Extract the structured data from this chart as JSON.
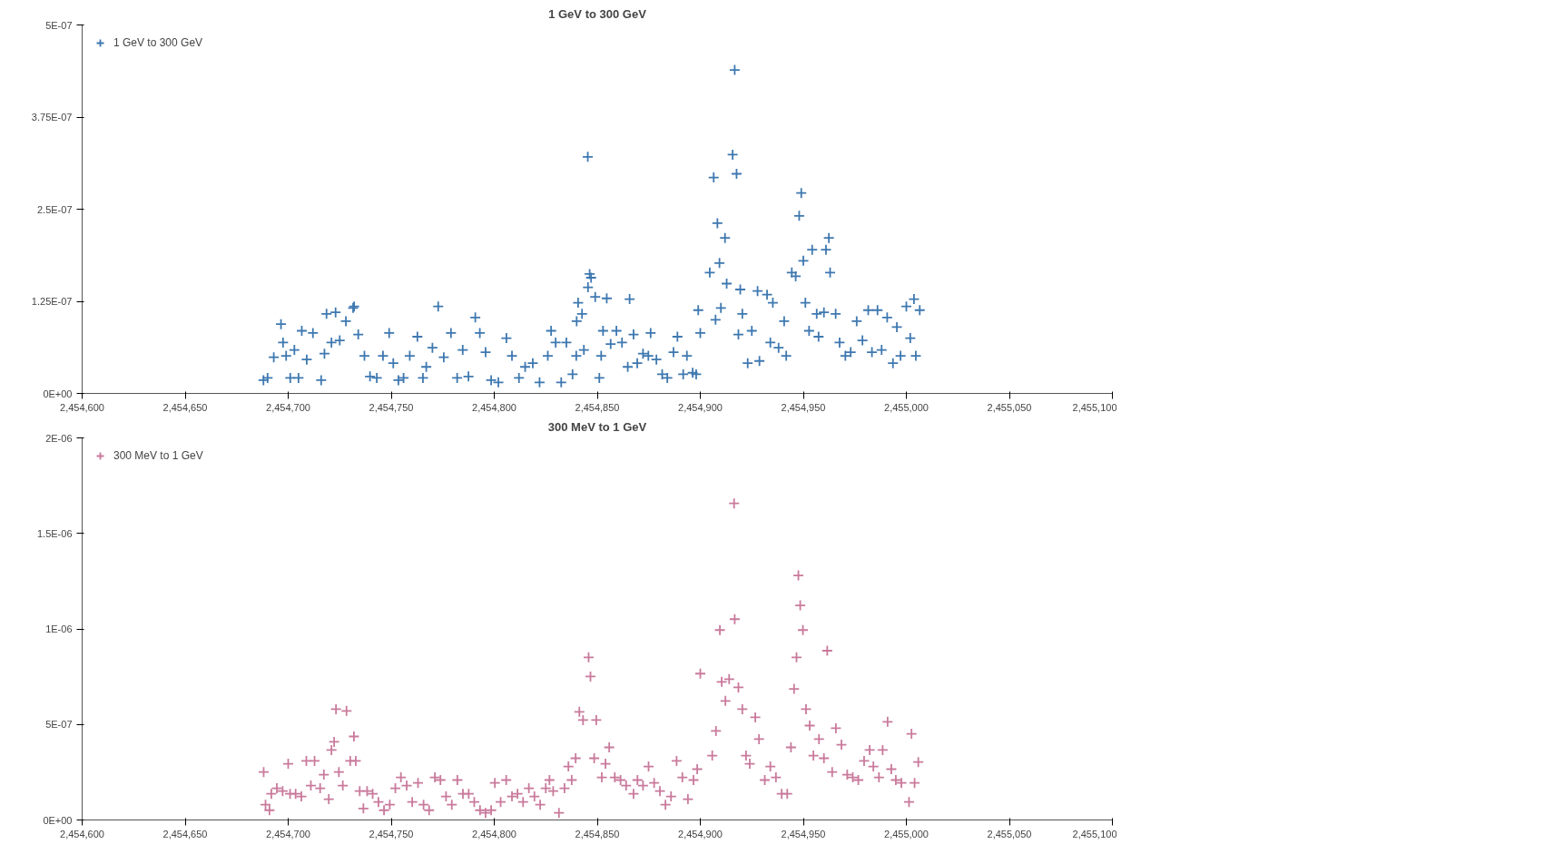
{
  "chart_data": [
    {
      "type": "scatter",
      "title": "1 GeV to 300 GeV",
      "marker": "cross",
      "legend": "top left",
      "grid": false,
      "xlim": [
        2454600,
        2455100
      ],
      "xticks": [
        {
          "value": 2454600,
          "label": "2,454,600"
        },
        {
          "value": 2454650,
          "label": "2,454,650"
        },
        {
          "value": 2454700,
          "label": "2,454,700"
        },
        {
          "value": 2454750,
          "label": "2,454,750"
        },
        {
          "value": 2454800,
          "label": "2,454,800"
        },
        {
          "value": 2454850,
          "label": "2,454,850"
        },
        {
          "value": 2454900,
          "label": "2,454,900"
        },
        {
          "value": 2454950,
          "label": "2,454,950"
        },
        {
          "value": 2455000,
          "label": "2,455,000"
        },
        {
          "value": 2455050,
          "label": "2,455,050"
        },
        {
          "value": 2455100,
          "label": "2,455,100"
        }
      ],
      "ylim": [
        0,
        5e-07
      ],
      "yticks": [
        {
          "value": 0,
          "label": "0E+00"
        },
        {
          "value": 1.25e-07,
          "label": "1.25E-07"
        },
        {
          "value": 2.5e-07,
          "label": "2.5E-07"
        },
        {
          "value": 3.75e-07,
          "label": "3.75E-07"
        },
        {
          "value": 5e-07,
          "label": "5E-07"
        }
      ],
      "series": [
        {
          "name": "1 GeV to 300 GeV",
          "color": "#3e78b0",
          "x": [
            2454688,
            2454690,
            2454693,
            2454696.5,
            2454697.5,
            2454699,
            2454701,
            2454703,
            2454705,
            2454706.6,
            2454709,
            2454712,
            2454716,
            2454717.6,
            2454718.6,
            2454721,
            2454723,
            2454725,
            2454728,
            2454731.5,
            2454732,
            2454734,
            2454737,
            2454739.7,
            2454743,
            2454746,
            2454749,
            2454751,
            2454753.5,
            2454756,
            2454759,
            2454762.7,
            2454765.4,
            2454767,
            2454770,
            2454772.8,
            2454775.5,
            2454779,
            2454782,
            2454784.7,
            2454787.5,
            2454790.8,
            2454793,
            2454795.8,
            2454798.5,
            2454802,
            2454805.9,
            2454808.6,
            2454812,
            2454815,
            2454818.7,
            2454822,
            2454826,
            2454827.6,
            2454829.8,
            2454832.5,
            2454835,
            2454838,
            2454840,
            2454845.5,
            2454847,
            2454839.8,
            2454840.7,
            2454846.3,
            2454845.4,
            2454842.6,
            2454849,
            2454854.6,
            2454843.5,
            2454851,
            2454851.9,
            2454852.8,
            2454856.5,
            2454859.3,
            2454862,
            2454865.7,
            2454864.8,
            2454867.6,
            2454869.4,
            2454872.2,
            2454874.8,
            2454875.9,
            2454878.7,
            2454881.5,
            2454884,
            2454887,
            2454888.9,
            2454891.7,
            2454893.5,
            2454896.3,
            2454898,
            2454900,
            2454899,
            2454904.6,
            2454906.5,
            2454907.4,
            2454908.3,
            2454909.3,
            2454910,
            2454912,
            2454912.8,
            2454915.7,
            2454916.7,
            2454917.6,
            2454919.4,
            2454918.5,
            2454920.4,
            2454923,
            2454925,
            2454927.8,
            2454928.7,
            2454932.4,
            2454935.2,
            2454934,
            2454938,
            2454940.7,
            2454941.7,
            2454944.4,
            2454946.3,
            2454948,
            2454949,
            2454950,
            2454951,
            2454952.8,
            2454954.3,
            2454956.5,
            2454957.4,
            2454960,
            2454961,
            2454962.4,
            2454963,
            2454965.7,
            2454967.6,
            2454970.4,
            2454973,
            2454975.9,
            2454978.7,
            2454981.5,
            2454983.3,
            2454986,
            2454988,
            2454990.7,
            2454993.5,
            2454995.4,
            2454997.2,
            2455000,
            2455001.9,
            2455003.7,
            2455004.6,
            2455006.5
          ],
          "values": [
            1.8e-08,
            2.1e-08,
            4.9e-08,
            9.4e-08,
            6.9e-08,
            5.1e-08,
            2.1e-08,
            5.9e-08,
            2.1e-08,
            8.5e-08,
            4.6e-08,
            8.2e-08,
            1.8e-08,
            5.4e-08,
            1.08e-07,
            6.9e-08,
            1.1e-07,
            7.2e-08,
            9.8e-08,
            1.16e-07,
            1.18e-07,
            8e-08,
            5.1e-08,
            2.3e-08,
            2.1e-08,
            5.1e-08,
            8.2e-08,
            4.1e-08,
            1.8e-08,
            2.1e-08,
            5.1e-08,
            7.7e-08,
            2.1e-08,
            3.6e-08,
            6.2e-08,
            1.18e-07,
            4.9e-08,
            8.2e-08,
            2.1e-08,
            5.9e-08,
            2.3e-08,
            1.03e-07,
            8.2e-08,
            5.6e-08,
            1.8e-08,
            1.5e-08,
            7.5e-08,
            5.1e-08,
            2.1e-08,
            3.6e-08,
            4.1e-08,
            1.5e-08,
            5.1e-08,
            8.5e-08,
            6.9e-08,
            1.5e-08,
            6.9e-08,
            2.6e-08,
            9.8e-08,
            1.44e-07,
            1.57e-07,
            5.1e-08,
            1.23e-07,
            1.62e-07,
            3.21e-07,
            1.08e-07,
            1.31e-07,
            1.29e-07,
            5.9e-08,
            2.1e-08,
            5.1e-08,
            8.5e-08,
            6.7e-08,
            8.5e-08,
            6.9e-08,
            1.28e-07,
            3.6e-08,
            8e-08,
            4.1e-08,
            5.4e-08,
            5.1e-08,
            8.2e-08,
            4.6e-08,
            2.6e-08,
            2.1e-08,
            5.6e-08,
            7.7e-08,
            2.6e-08,
            5.1e-08,
            2.8e-08,
            2.6e-08,
            8.2e-08,
            1.13e-07,
            1.64e-07,
            2.93e-07,
            1e-07,
            2.31e-07,
            1.77e-07,
            1.16e-07,
            2.11e-07,
            1.49e-07,
            3.24e-07,
            4.39e-07,
            2.98e-07,
            1.41e-07,
            8e-08,
            1.08e-07,
            4.1e-08,
            8.5e-08,
            1.39e-07,
            4.4e-08,
            1.34e-07,
            1.23e-07,
            6.9e-08,
            6.2e-08,
            9.8e-08,
            5.1e-08,
            1.64e-07,
            1.59e-07,
            2.41e-07,
            2.72e-07,
            1.8e-07,
            1.23e-07,
            8.5e-08,
            1.95e-07,
            1.08e-07,
            7.7e-08,
            1.1e-07,
            1.95e-07,
            2.11e-07,
            1.64e-07,
            1.08e-07,
            6.9e-08,
            5.1e-08,
            5.6e-08,
            9.8e-08,
            7.2e-08,
            1.13e-07,
            5.6e-08,
            1.13e-07,
            5.9e-08,
            1.03e-07,
            4.1e-08,
            9e-08,
            5.1e-08,
            1.18e-07,
            7.5e-08,
            1.28e-07,
            5.1e-08,
            1.13e-07
          ]
        }
      ]
    },
    {
      "type": "scatter",
      "title": "300 MeV to 1 GeV",
      "marker": "cross",
      "legend": "top left",
      "grid": false,
      "xlim": [
        2454600,
        2455100
      ],
      "xticks": [
        {
          "value": 2454600,
          "label": "2,454,600"
        },
        {
          "value": 2454650,
          "label": "2,454,650"
        },
        {
          "value": 2454700,
          "label": "2,454,700"
        },
        {
          "value": 2454750,
          "label": "2,454,750"
        },
        {
          "value": 2454800,
          "label": "2,454,800"
        },
        {
          "value": 2454850,
          "label": "2,454,850"
        },
        {
          "value": 2454900,
          "label": "2,454,900"
        },
        {
          "value": 2454950,
          "label": "2,454,950"
        },
        {
          "value": 2455000,
          "label": "2,455,000"
        },
        {
          "value": 2455050,
          "label": "2,455,050"
        },
        {
          "value": 2455100,
          "label": "2,455,100"
        }
      ],
      "ylim": [
        0,
        2e-06
      ],
      "yticks": [
        {
          "value": 0,
          "label": "0E+00"
        },
        {
          "value": 5e-07,
          "label": "5E-07"
        },
        {
          "value": 1e-06,
          "label": "1E-06"
        },
        {
          "value": 1.5e-06,
          "label": "1.5E-06"
        },
        {
          "value": 2e-06,
          "label": "2E-06"
        }
      ],
      "series": [
        {
          "name": "300 MeV to 1 GeV",
          "color": "#c97a9c",
          "x": [
            2454688.1,
            2454689,
            2454690.9,
            2454691.8,
            2454694.5,
            2454697.3,
            2454700,
            2454700.9,
            2454703.6,
            2454706.4,
            2454708.8,
            2454711,
            2454712.8,
            2454715.5,
            2454717.3,
            2454719.7,
            2454721,
            2454722.3,
            2454723.2,
            2454724.6,
            2454726.5,
            2454728.3,
            2454730.1,
            2454731.9,
            2454732.8,
            2454734.7,
            2454736.5,
            2454738.3,
            2454741,
            2454743.8,
            2454746.5,
            2454749.3,
            2454752,
            2454754.7,
            2454757.5,
            2454760.2,
            2454763,
            2454765.7,
            2454768.4,
            2454771.2,
            2454773.9,
            2454776.6,
            2454779.4,
            2454782.1,
            2454784.8,
            2454787.6,
            2454790.3,
            2454793.1,
            2454795.8,
            2454798.5,
            2454800.3,
            2454803.1,
            2454805.8,
            2454808.6,
            2454811.3,
            2454814,
            2454816.8,
            2454819.5,
            2454822.3,
            2454825,
            2454826.8,
            2454828.6,
            2454831.4,
            2454834.1,
            2454836,
            2454837.6,
            2454839.5,
            2454841.3,
            2454843.1,
            2454845.8,
            2454846.7,
            2454848.5,
            2454849.5,
            2454852.2,
            2454854,
            2454855.8,
            2454858.5,
            2454861.3,
            2454864,
            2454867.6,
            2454869.5,
            2454872.2,
            2454874.9,
            2454877.6,
            2454880.4,
            2454883.1,
            2454885.8,
            2454888.5,
            2454891.3,
            2454894,
            2454896.7,
            2454898.5,
            2454900,
            2454905.8,
            2454907.6,
            2454909.5,
            2454910.4,
            2454912.2,
            2454914,
            2454916.4,
            2454916.7,
            2454918.5,
            2454920.4,
            2454922.2,
            2454924,
            2454926.7,
            2454928.5,
            2454931.3,
            2454934,
            2454936.7,
            2454939.5,
            2454942.2,
            2454944,
            2454945.5,
            2454946.7,
            2454947.6,
            2454948.5,
            2454949.8,
            2454951.3,
            2454953.1,
            2454954.9,
            2454957.6,
            2454960,
            2454961.6,
            2454964,
            2454965.8,
            2454968.5,
            2454971.3,
            2454974,
            2454976.7,
            2454979.5,
            2454982.2,
            2454984,
            2454986.7,
            2454988.5,
            2454990.9,
            2454992.7,
            2454994.9,
            2454997.6,
            2455001.3,
            2455002.5,
            2455004,
            2455005.8
          ],
          "values": [
            2.51e-07,
            8e-08,
            5.1e-08,
            1.37e-07,
            1.66e-07,
            1.51e-07,
            2.94e-07,
            1.37e-07,
            1.37e-07,
            1.23e-07,
            3.09e-07,
            1.8e-07,
            3.09e-07,
            1.66e-07,
            2.37e-07,
            1.09e-07,
            3.66e-07,
            4.09e-07,
            5.8e-07,
            2.51e-07,
            1.8e-07,
            5.71e-07,
            3.09e-07,
            4.37e-07,
            3.09e-07,
            1.51e-07,
            6e-08,
            1.51e-07,
            1.37e-07,
            9.4e-08,
            5.1e-08,
            8e-08,
            1.66e-07,
            2.23e-07,
            1.8e-07,
            9.4e-08,
            1.94e-07,
            8e-08,
            5.1e-08,
            2.23e-07,
            2.09e-07,
            1.23e-07,
            8e-08,
            2.09e-07,
            1.37e-07,
            1.37e-07,
            9.4e-08,
            5.1e-08,
            3.7e-08,
            5.1e-08,
            1.94e-07,
            9.4e-08,
            2.09e-07,
            1.23e-07,
            1.37e-07,
            9.4e-08,
            1.66e-07,
            1.23e-07,
            8e-08,
            1.66e-07,
            2.09e-07,
            1.51e-07,
            3.7e-08,
            1.66e-07,
            2.8e-07,
            2.09e-07,
            3.23e-07,
            5.66e-07,
            5.23e-07,
            8.51e-07,
            7.51e-07,
            3.23e-07,
            5.23e-07,
            2.23e-07,
            2.94e-07,
            3.8e-07,
            2.23e-07,
            2.09e-07,
            1.8e-07,
            1.37e-07,
            2.09e-07,
            1.8e-07,
            2.8e-07,
            1.94e-07,
            1.51e-07,
            8e-08,
            1.23e-07,
            3.09e-07,
            2.23e-07,
            1.09e-07,
            2.09e-07,
            2.66e-07,
            7.66e-07,
            3.37e-07,
            4.66e-07,
            9.94e-07,
            7.23e-07,
            6.23e-07,
            7.37e-07,
            1.657e-06,
            1.051e-06,
            6.94e-07,
            5.8e-07,
            3.37e-07,
            2.94e-07,
            5.37e-07,
            4.23e-07,
            2.09e-07,
            2.8e-07,
            2.23e-07,
            1.37e-07,
            1.37e-07,
            3.8e-07,
            6.86e-07,
            8.51e-07,
            1.28e-06,
            1.123e-06,
            9.94e-07,
            5.8e-07,
            4.94e-07,
            3.37e-07,
            4.23e-07,
            3.23e-07,
            8.86e-07,
            2.51e-07,
            4.8e-07,
            3.94e-07,
            2.37e-07,
            2.23e-07,
            2.09e-07,
            3.09e-07,
            3.66e-07,
            2.8e-07,
            2.23e-07,
            3.66e-07,
            5.14e-07,
            2.66e-07,
            2.09e-07,
            1.94e-07,
            9.4e-08,
            4.51e-07,
            1.94e-07,
            3.03e-07
          ]
        }
      ]
    }
  ]
}
